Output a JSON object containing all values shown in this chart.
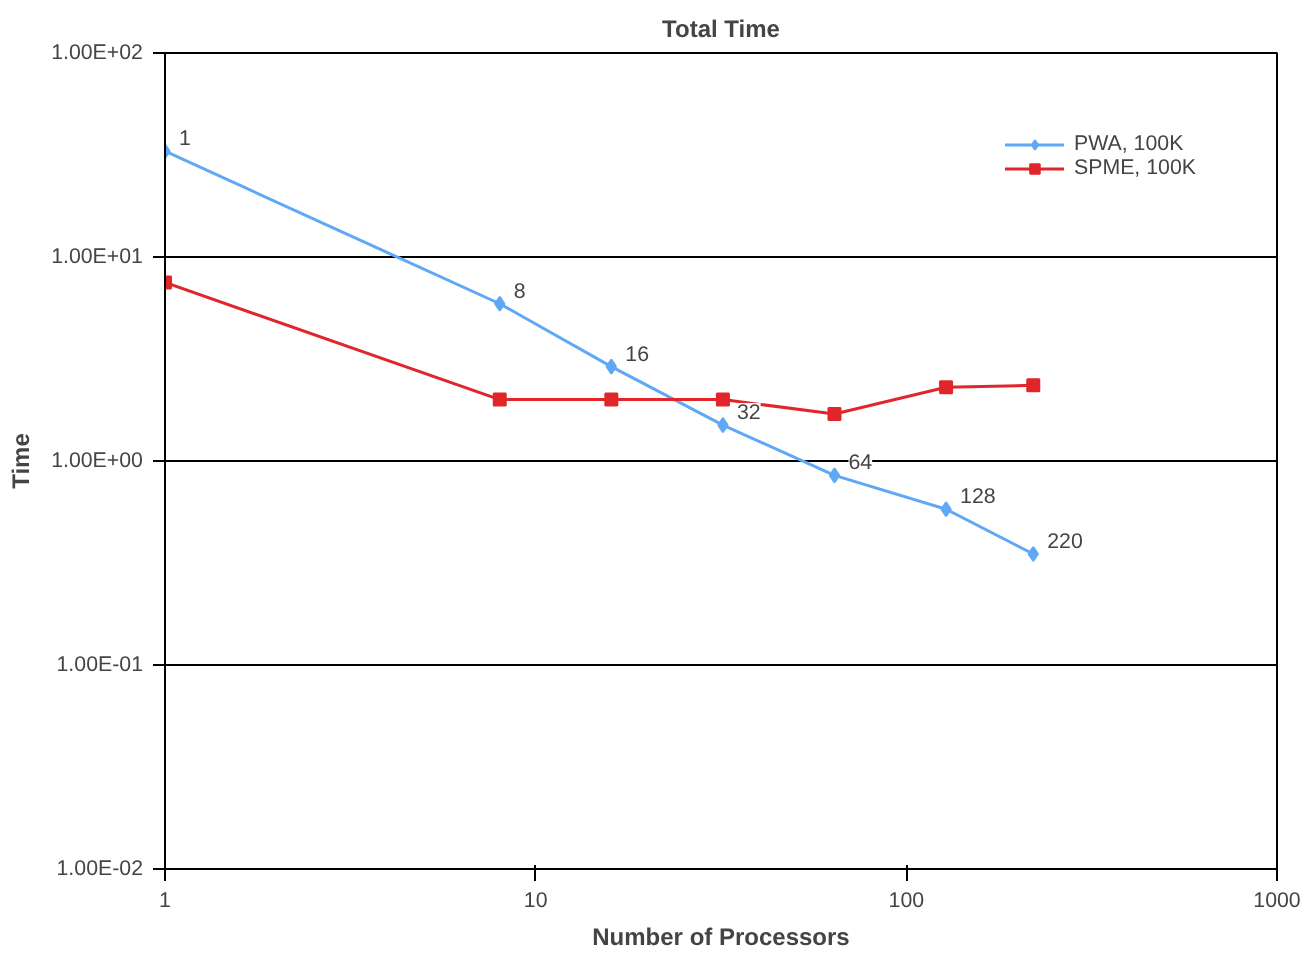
{
  "chart_data": {
    "type": "line",
    "title": "Total Time",
    "xlabel": "Number of Processors",
    "ylabel": "Time",
    "log": "xy",
    "grid": "y",
    "legend": "top right",
    "xlim": [
      1,
      1000
    ],
    "xticks": [
      1,
      10,
      100,
      1000
    ],
    "ylim": [
      0.01,
      100
    ],
    "yticks": [
      {
        "value": 0.01,
        "label": "1.00E-02"
      },
      {
        "value": 0.1,
        "label": "1.00E-01"
      },
      {
        "value": 1,
        "label": "1.00E+00"
      },
      {
        "value": 10,
        "label": "1.00E+01"
      },
      {
        "value": 100,
        "label": "1.00E+02"
      }
    ],
    "series": [
      {
        "name": "PWA, 100K",
        "color": "#5fa8f5",
        "marker": "diamond",
        "x": [
          1,
          8,
          16,
          32,
          64,
          128,
          220
        ],
        "values": [
          33,
          5.9,
          2.9,
          1.5,
          0.85,
          0.58,
          0.35
        ]
      },
      {
        "name": "SPME, 100K",
        "color": "#e0262b",
        "marker": "square",
        "x": [
          1,
          8,
          16,
          32,
          64,
          128,
          220
        ],
        "values": [
          7.5,
          2.0,
          2.0,
          2.0,
          1.7,
          2.3,
          2.35
        ]
      }
    ],
    "annotations": [
      {
        "text": "1",
        "x": 1,
        "y": 33
      },
      {
        "text": "8",
        "x": 8,
        "y": 5.9
      },
      {
        "text": "16",
        "x": 16,
        "y": 2.9
      },
      {
        "text": "32",
        "x": 32,
        "y": 1.5
      },
      {
        "text": "64",
        "x": 64,
        "y": 0.85
      },
      {
        "text": "128",
        "x": 128,
        "y": 0.58
      },
      {
        "text": "220",
        "x": 220,
        "y": 0.35
      }
    ]
  }
}
